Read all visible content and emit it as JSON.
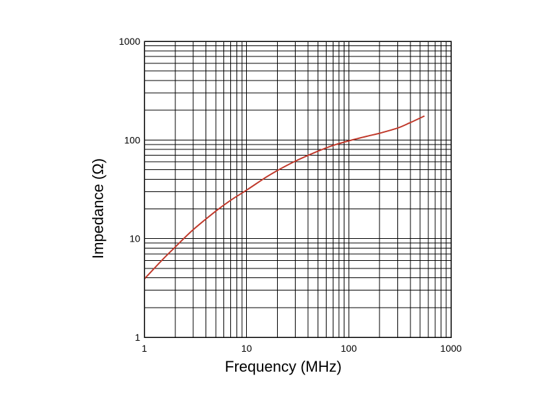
{
  "chart_data": {
    "type": "line",
    "title": "",
    "xlabel": "Frequency (MHz)",
    "ylabel": "Impedance (Ω)",
    "x_scale": "log",
    "y_scale": "log",
    "xlim": [
      1,
      1000
    ],
    "ylim": [
      1,
      1000
    ],
    "x_ticks": [
      1,
      10,
      100,
      1000
    ],
    "x_tick_labels": [
      "1",
      "10",
      "100",
      "1000"
    ],
    "y_ticks": [
      1,
      10,
      100,
      1000
    ],
    "y_tick_labels": [
      "1",
      "10",
      "100",
      "1000"
    ],
    "grid": true,
    "line_color": "#c0392b",
    "series": [
      {
        "x": [
          1,
          1.5,
          2,
          3,
          5,
          7,
          10,
          15,
          20,
          30,
          50,
          70,
          100,
          150,
          200,
          300,
          400,
          550
        ],
        "y": [
          3.9,
          6.1,
          8.2,
          12.3,
          19,
          24.5,
          31,
          41,
          49,
          61,
          77,
          88,
          98,
          109,
          117,
          132,
          150,
          175
        ]
      }
    ]
  }
}
